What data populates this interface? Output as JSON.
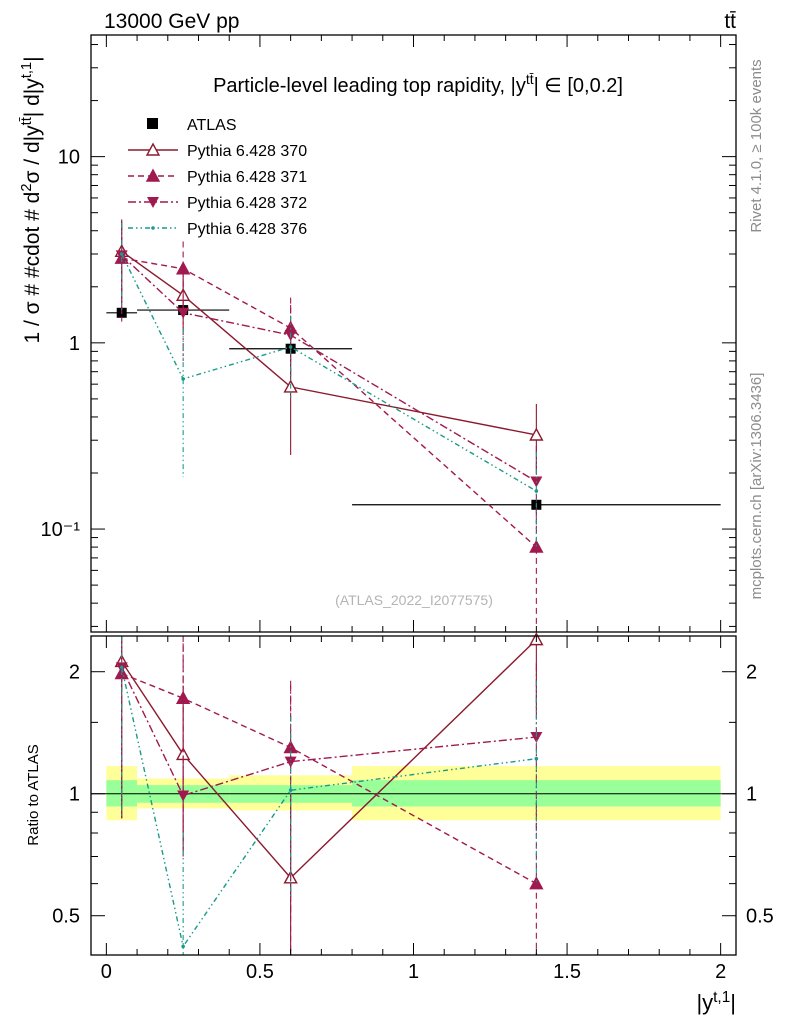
{
  "header": {
    "energy_label": "13000 GeV pp",
    "process_label": "tt̄"
  },
  "side_labels": {
    "rivet": "Rivet 4.1.0, ≥ 100k events",
    "mcplots": "mcplots.cern.ch [arXiv:1306.3436]"
  },
  "chart_data": [
    {
      "type": "scatter",
      "panel": "main",
      "title": "Particle-level leading top rapidity, |y^{tt̄}| ∈ [0,0.2]",
      "ylabel": "1 / σ # #cdot # d²σ / d|y^{tt̄}| d|y^{t,1}|",
      "yscale": "log",
      "xlim": [
        -0.05,
        2.05
      ],
      "ylim": [
        0.028,
        45
      ],
      "y_ticks": [
        {
          "value": 0.1,
          "label": "10⁻¹"
        },
        {
          "value": 1,
          "label": "1"
        },
        {
          "value": 10,
          "label": "10"
        }
      ],
      "watermark": "(ATLAS_2022_I2077575)",
      "legend_position": "top-left",
      "series": [
        {
          "name": "ATLAS",
          "color": "#000000",
          "style": "data",
          "x": [
            0.05,
            0.25,
            0.6,
            1.4
          ],
          "xerr": [
            0.05,
            0.15,
            0.2,
            0.6
          ],
          "y": [
            1.45,
            1.5,
            0.93,
            0.135
          ],
          "ylo": [
            1.45,
            1.5,
            0.93,
            0.135
          ],
          "yhi": [
            1.45,
            1.5,
            0.93,
            0.135
          ]
        },
        {
          "name": "Pythia 6.428 370",
          "color": "#8b1a2e",
          "style": "solid",
          "marker": "triangle-up-open",
          "x": [
            0.05,
            0.25,
            0.6,
            1.4
          ],
          "y": [
            3.1,
            1.8,
            0.58,
            0.32
          ],
          "ylo": [
            1.65,
            1.15,
            0.25,
            0.2
          ],
          "yhi": [
            4.6,
            2.7,
            0.95,
            0.47
          ]
        },
        {
          "name": "Pythia 6.428 371",
          "color": "#a0194f",
          "style": "dashed",
          "marker": "triangle-up",
          "x": [
            0.05,
            0.25,
            0.6,
            1.4
          ],
          "y": [
            2.85,
            2.5,
            1.2,
            0.08
          ],
          "ylo": [
            1.3,
            1.4,
            0.7,
            0.03
          ],
          "yhi": [
            4.2,
            3.5,
            1.75,
            0.13
          ]
        },
        {
          "name": "Pythia 6.428 372",
          "color": "#a0194f",
          "style": "dashdot",
          "marker": "triangle-down",
          "x": [
            0.05,
            0.25,
            0.6,
            1.4
          ],
          "y": [
            2.95,
            1.45,
            1.1,
            0.18
          ],
          "ylo": [
            1.4,
            0.8,
            0.6,
            0.1
          ],
          "yhi": [
            4.5,
            2.2,
            1.6,
            0.28
          ]
        },
        {
          "name": "Pythia 6.428 376",
          "color": "#1a9a8c",
          "style": "dashdotdot",
          "marker": "dot",
          "x": [
            0.05,
            0.25,
            0.6,
            1.4
          ],
          "y": [
            3.0,
            0.64,
            0.95,
            0.16
          ],
          "ylo": [
            1.5,
            0.19,
            0.5,
            0.08
          ],
          "yhi": [
            4.4,
            1.2,
            1.4,
            0.26
          ]
        }
      ]
    },
    {
      "type": "scatter",
      "panel": "ratio",
      "ylabel": "Ratio to ATLAS",
      "xlabel": "|y^{t,1}|",
      "yscale": "log",
      "xlim": [
        -0.05,
        2.05
      ],
      "ylim": [
        0.4,
        2.45
      ],
      "x_ticks": [
        0,
        0.5,
        1,
        1.5,
        2
      ],
      "y_ticks": [
        {
          "value": 0.5,
          "label": "0.5"
        },
        {
          "value": 1,
          "label": "1"
        },
        {
          "value": 2,
          "label": "2"
        }
      ],
      "bands": [
        {
          "xmin": 0.0,
          "xmax": 0.1,
          "yellow": [
            0.86,
            1.17
          ],
          "green": [
            0.93,
            1.08
          ]
        },
        {
          "xmin": 0.1,
          "xmax": 0.4,
          "yellow": [
            0.92,
            1.09
          ],
          "green": [
            0.95,
            1.05
          ]
        },
        {
          "xmin": 0.4,
          "xmax": 0.8,
          "yellow": [
            0.91,
            1.11
          ],
          "green": [
            0.95,
            1.05
          ]
        },
        {
          "xmin": 0.8,
          "xmax": 2.0,
          "yellow": [
            0.86,
            1.17
          ],
          "green": [
            0.93,
            1.08
          ]
        }
      ],
      "series": [
        {
          "name": "Pythia 6.428 370",
          "color": "#8b1a2e",
          "style": "solid",
          "marker": "triangle-up-open",
          "x": [
            0.05,
            0.25,
            0.6,
            1.4
          ],
          "y": [
            2.12,
            1.25,
            0.62,
            2.4
          ],
          "ylo": [
            0.87,
            0.72,
            0.25,
            1.6
          ],
          "yhi": [
            2.45,
            1.85,
            1.0,
            2.45
          ]
        },
        {
          "name": "Pythia 6.428 371",
          "color": "#a0194f",
          "style": "dashed",
          "marker": "triangle-up",
          "x": [
            0.05,
            0.25,
            0.6,
            1.4
          ],
          "y": [
            1.98,
            1.72,
            1.3,
            0.6
          ],
          "ylo": [
            0.87,
            0.72,
            0.25,
            0.3
          ],
          "yhi": [
            2.45,
            2.45,
            1.85,
            0.95
          ]
        },
        {
          "name": "Pythia 6.428 372",
          "color": "#a0194f",
          "style": "dashdot",
          "marker": "triangle-down",
          "x": [
            0.05,
            0.25,
            0.6,
            1.4
          ],
          "y": [
            2.05,
            0.99,
            1.2,
            1.38
          ],
          "ylo": [
            0.87,
            0.7,
            0.5,
            0.8
          ],
          "yhi": [
            2.45,
            2.35,
            1.9,
            2.1
          ]
        },
        {
          "name": "Pythia 6.428 376",
          "color": "#1a9a8c",
          "style": "dashdotdot",
          "marker": "dot",
          "x": [
            0.05,
            0.25,
            0.6,
            1.4
          ],
          "y": [
            2.05,
            0.42,
            1.02,
            1.22
          ],
          "ylo": [
            0.87,
            0.4,
            0.55,
            0.6
          ],
          "yhi": [
            2.45,
            0.8,
            1.55,
            1.9
          ]
        }
      ]
    }
  ]
}
